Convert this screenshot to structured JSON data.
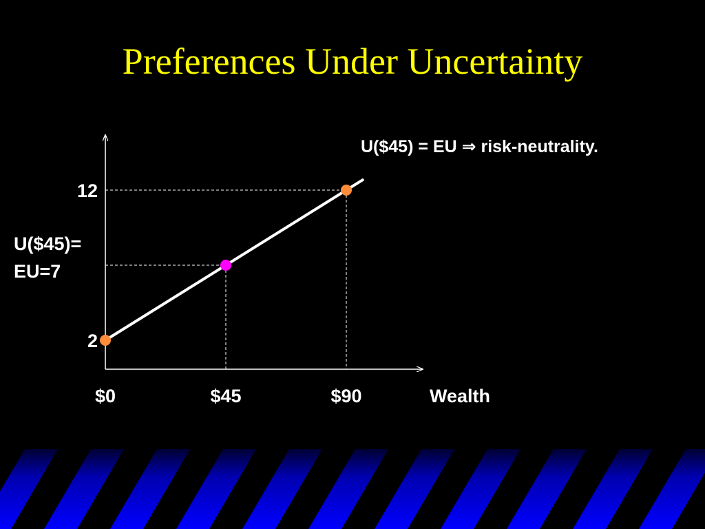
{
  "slide": {
    "title": "Preferences Under Uncertainty",
    "annotation": "U($45) = EU ⇒ risk-neutrality.",
    "mid_label_line1": "U($45)=",
    "mid_label_line2": "EU=7",
    "background_color": "#000000",
    "title_color": "#ffff00",
    "band_colors": [
      "#0000ff",
      "#000000"
    ]
  },
  "chart_data": {
    "type": "line",
    "title": "",
    "xlabel": "Wealth",
    "ylabel": "",
    "xlim": [
      0,
      90
    ],
    "ylim": [
      2,
      12
    ],
    "x_tick_labels": [
      {
        "x": 0,
        "label": "$0"
      },
      {
        "x": 45,
        "label": "$45"
      },
      {
        "x": 90,
        "label": "$90"
      }
    ],
    "y_tick_labels": [
      {
        "y": 12,
        "label": "12"
      },
      {
        "y": 2,
        "label": "2"
      }
    ],
    "series": [
      {
        "x": [
          0,
          90
        ],
        "y": [
          2,
          12
        ],
        "color": "#ffffff"
      }
    ],
    "points": [
      {
        "x": 0,
        "y": 2,
        "color": "#ff8c3a"
      },
      {
        "x": 45,
        "y": 7,
        "color": "#ff00ff"
      },
      {
        "x": 90,
        "y": 12,
        "color": "#ff8c3a"
      }
    ],
    "dashed_guides": true,
    "grid": false
  }
}
